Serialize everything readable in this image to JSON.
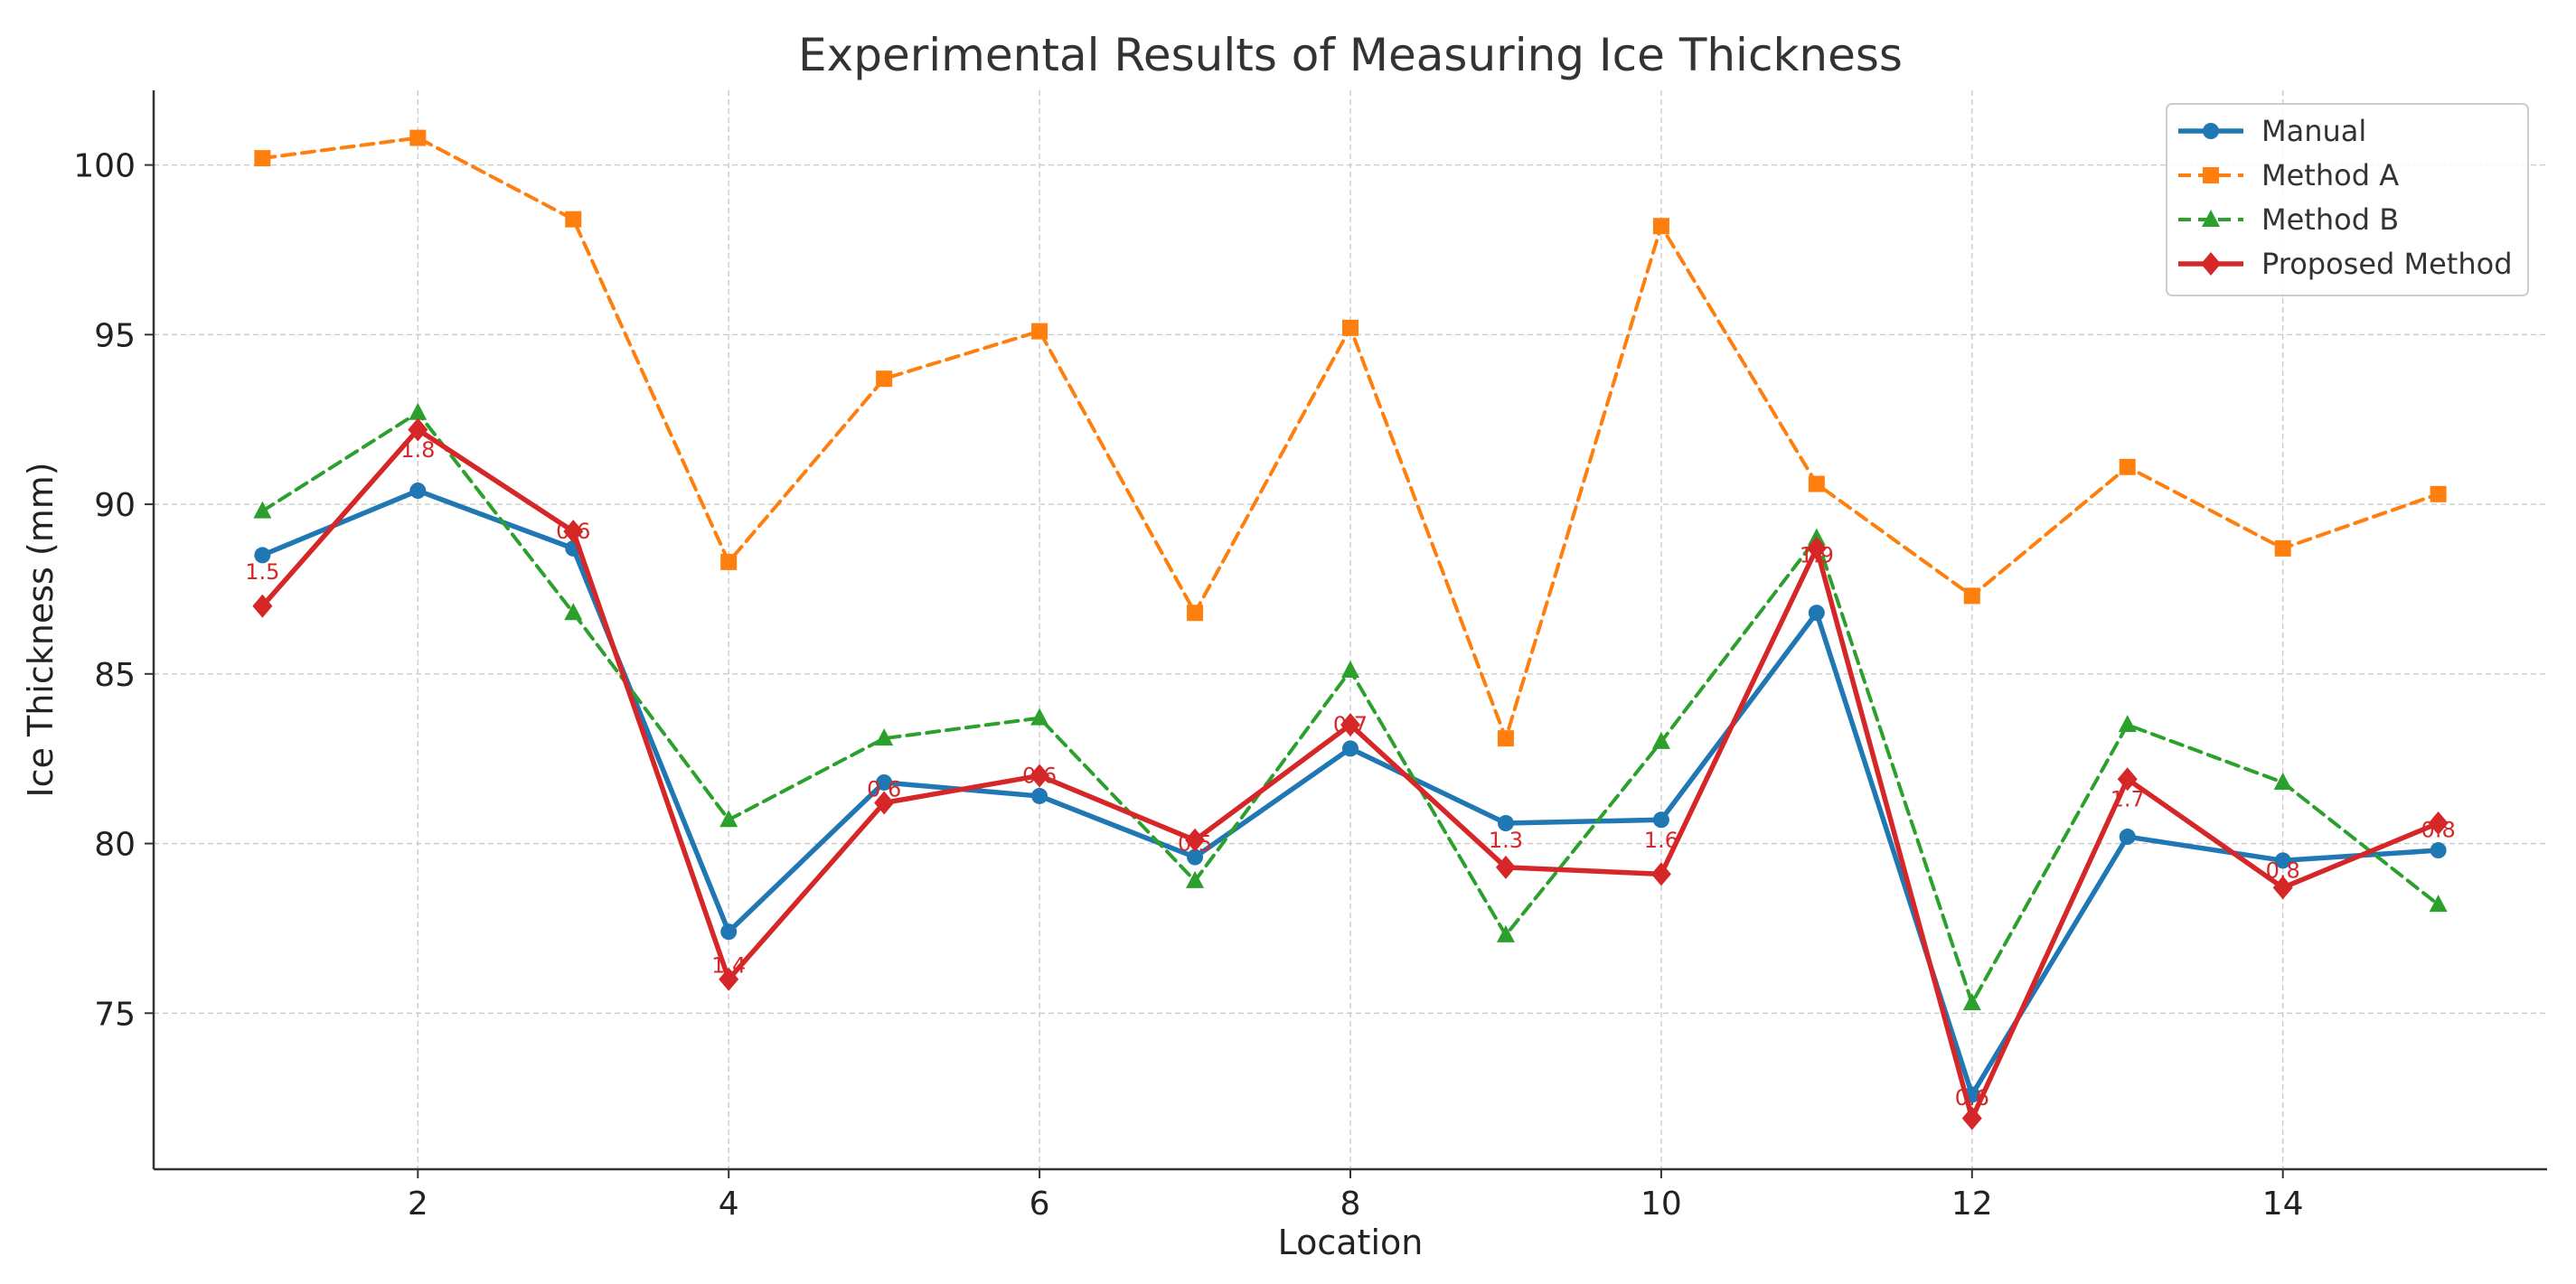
{
  "chart_data": {
    "type": "line",
    "title": "Experimental Results of Measuring Ice Thickness",
    "xlabel": "Location",
    "ylabel": "Ice Thickness (mm)",
    "xlim": [
      0.3,
      15.7
    ],
    "ylim": [
      70.4,
      102.2
    ],
    "xticks": [
      2,
      4,
      6,
      8,
      10,
      12,
      14
    ],
    "yticks": [
      75,
      80,
      85,
      90,
      95,
      100
    ],
    "grid": true,
    "legend_position": "top-right",
    "x": [
      1,
      2,
      3,
      4,
      5,
      6,
      7,
      8,
      9,
      10,
      11,
      12,
      13,
      14,
      15
    ],
    "series": [
      {
        "name": "Manual",
        "color": "#1f77b4",
        "dash": "solid",
        "marker": "circle",
        "values": [
          88.5,
          90.4,
          88.7,
          77.4,
          81.8,
          81.4,
          79.6,
          82.8,
          80.6,
          80.7,
          86.8,
          72.6,
          80.2,
          79.5,
          79.8
        ]
      },
      {
        "name": "Method A",
        "color": "#ff7f0e",
        "dash": "dashed",
        "marker": "square",
        "values": [
          100.2,
          100.8,
          98.4,
          88.3,
          93.7,
          95.1,
          86.8,
          95.2,
          83.1,
          98.2,
          90.6,
          87.3,
          91.1,
          88.7,
          90.3
        ]
      },
      {
        "name": "Method B",
        "color": "#2ca02c",
        "dash": "dashed",
        "marker": "triangle",
        "values": [
          89.8,
          92.7,
          86.8,
          80.7,
          83.1,
          83.7,
          78.9,
          85.1,
          77.3,
          83.0,
          89.0,
          75.3,
          83.5,
          81.8,
          78.2
        ]
      },
      {
        "name": "Proposed Method",
        "color": "#d62728",
        "dash": "solid",
        "marker": "diamond",
        "values": [
          87.0,
          92.2,
          89.2,
          76.0,
          81.2,
          82.0,
          80.1,
          83.5,
          79.3,
          79.1,
          88.7,
          71.9,
          81.9,
          78.7,
          80.6
        ]
      }
    ],
    "annotations": {
      "color": "#d62728",
      "labels": [
        "1.5",
        "1.8",
        "0.6",
        "1.4",
        "0.6",
        "0.6",
        "0.5",
        "0.7",
        "1.3",
        "1.6",
        "1.9",
        "0.6",
        "1.7",
        "0.8",
        "0.8"
      ],
      "values_y": [
        88.0,
        91.6,
        89.2,
        76.4,
        81.6,
        82.0,
        80.0,
        83.5,
        80.1,
        80.1,
        88.5,
        72.5,
        81.3,
        79.2,
        80.4
      ]
    }
  }
}
